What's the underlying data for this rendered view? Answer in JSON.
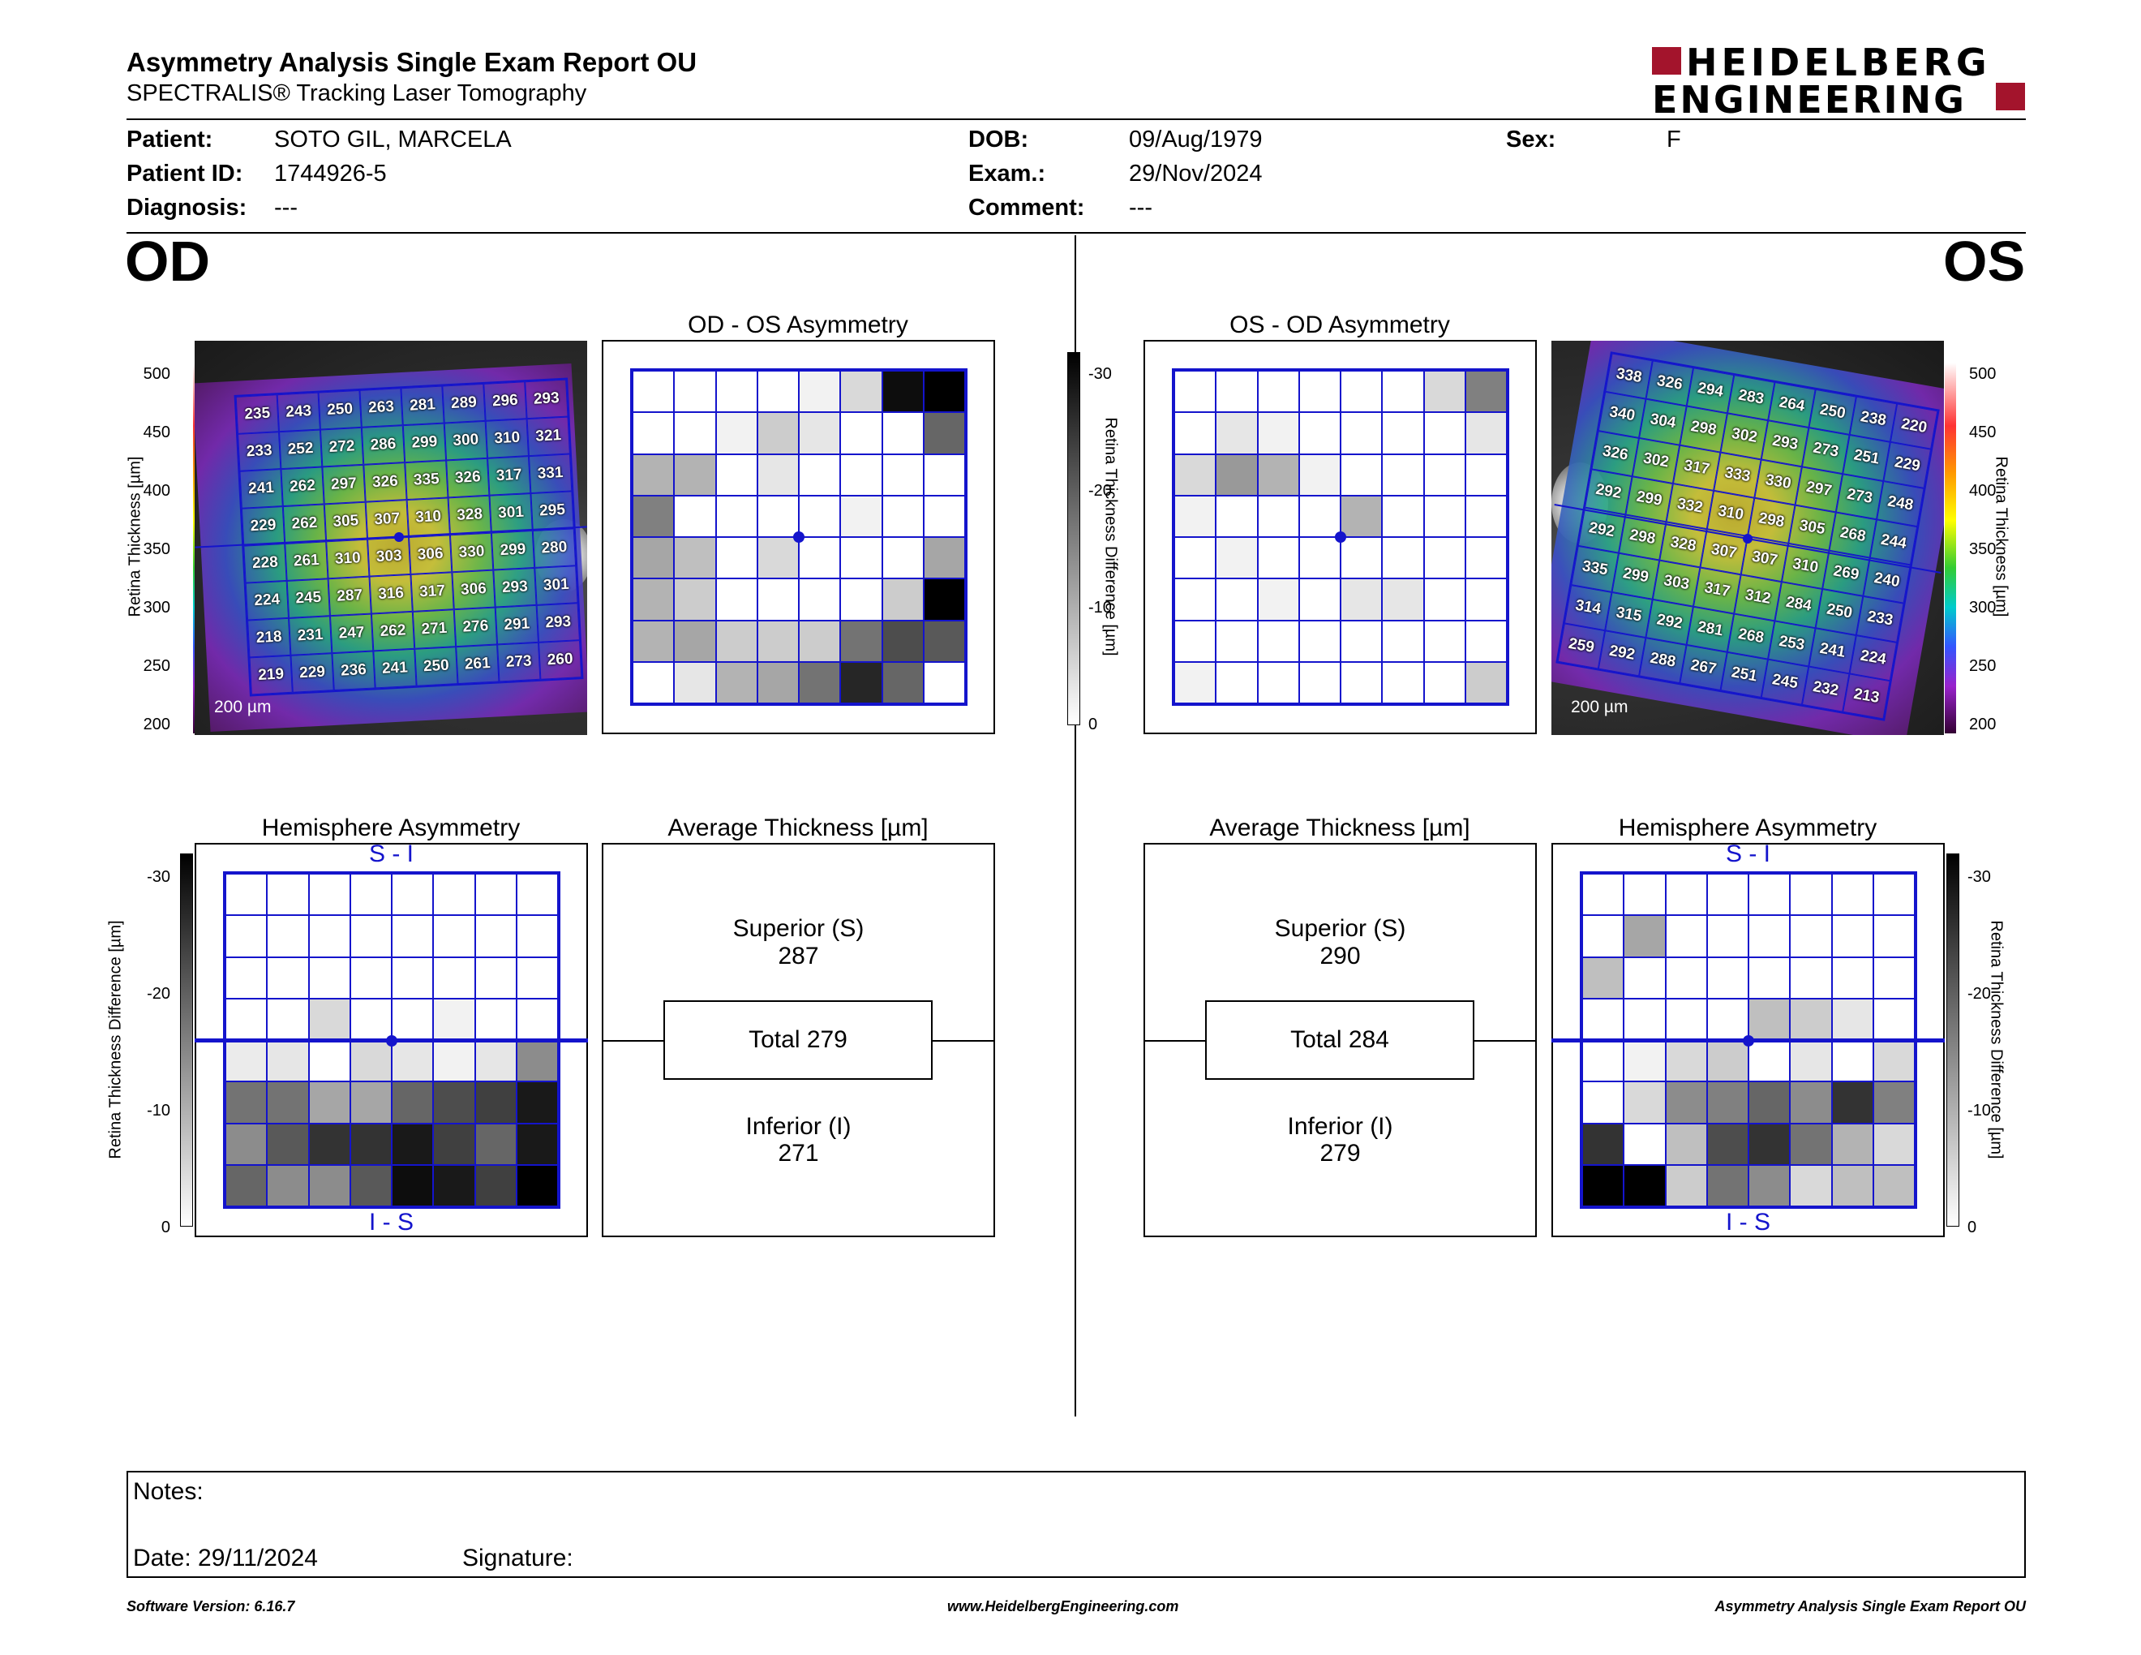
{
  "header": {
    "title": "Asymmetry Analysis Single Exam Report OU",
    "subtitle": "SPECTRALIS® Tracking Laser Tomography",
    "brand_line1": "HEIDELBERG",
    "brand_line2": "ENGINEERING",
    "brand_color": "#a3142c"
  },
  "patient": {
    "patient_label": "Patient:",
    "patient_value": "SOTO GIL, MARCELA",
    "id_label": "Patient ID:",
    "id_value": "1744926-5",
    "diagnosis_label": "Diagnosis:",
    "diagnosis_value": "---",
    "dob_label": "DOB:",
    "dob_value": "09/Aug/1979",
    "exam_label": "Exam.:",
    "exam_value": "29/Nov/2024",
    "comment_label": "Comment:",
    "comment_value": "---",
    "sex_label": "Sex:",
    "sex_value": "F"
  },
  "eyes": {
    "left": "OD",
    "right": "OS"
  },
  "od": {
    "thickness_map": [
      [
        235,
        243,
        250,
        263,
        281,
        289,
        296,
        293
      ],
      [
        233,
        252,
        272,
        286,
        299,
        300,
        310,
        321
      ],
      [
        241,
        262,
        297,
        326,
        335,
        326,
        317,
        331
      ],
      [
        229,
        262,
        305,
        307,
        310,
        328,
        301,
        295
      ],
      [
        228,
        261,
        310,
        303,
        306,
        330,
        299,
        280
      ],
      [
        224,
        245,
        287,
        316,
        317,
        306,
        293,
        301
      ],
      [
        218,
        231,
        247,
        262,
        271,
        276,
        291,
        293
      ],
      [
        219,
        229,
        236,
        241,
        250,
        261,
        273,
        260
      ]
    ],
    "asymmetry_title": "OD - OS Asymmetry",
    "asymmetry_levels": [
      [
        0,
        0,
        0,
        0,
        0.05,
        0.15,
        0.95,
        1.0
      ],
      [
        0,
        0,
        0.05,
        0.2,
        0.1,
        0,
        0,
        0.6
      ],
      [
        0.3,
        0.3,
        0,
        0.1,
        0,
        0,
        0,
        0
      ],
      [
        0.5,
        0,
        0,
        0,
        0,
        0.05,
        0,
        0
      ],
      [
        0.35,
        0.25,
        0,
        0.15,
        0,
        0,
        0,
        0.35
      ],
      [
        0.3,
        0.2,
        0,
        0,
        0,
        0,
        0.2,
        1.0
      ],
      [
        0.3,
        0.35,
        0.2,
        0.2,
        0.2,
        0.55,
        0.7,
        0.65
      ],
      [
        0,
        0.1,
        0.3,
        0.35,
        0.55,
        0.85,
        0.6,
        0
      ]
    ],
    "hemi_title": "Hemisphere Asymmetry",
    "hemi_top": "S - I",
    "hemi_bottom": "I - S",
    "hemi_levels": [
      [
        0,
        0,
        0,
        0,
        0,
        0,
        0,
        0
      ],
      [
        0,
        0,
        0,
        0,
        0,
        0,
        0,
        0
      ],
      [
        0,
        0,
        0,
        0,
        0,
        0,
        0,
        0
      ],
      [
        0,
        0,
        0.15,
        0,
        0,
        0.05,
        0,
        0
      ],
      [
        0.08,
        0.1,
        0,
        0.15,
        0.1,
        0.05,
        0.1,
        0.45
      ],
      [
        0.55,
        0.55,
        0.35,
        0.35,
        0.6,
        0.7,
        0.75,
        0.9
      ],
      [
        0.45,
        0.65,
        0.8,
        0.8,
        0.9,
        0.75,
        0.6,
        0.9
      ],
      [
        0.6,
        0.45,
        0.45,
        0.65,
        0.95,
        0.9,
        0.75,
        1.0
      ]
    ],
    "avg_title": "Average Thickness [µm]",
    "superior_label": "Superior (S)",
    "superior_value": "287",
    "total_label": "Total 279",
    "inferior_label": "Inferior (I)",
    "inferior_value": "271",
    "scale_label": "200 µm"
  },
  "os": {
    "thickness_map": [
      [
        338,
        326,
        294,
        283,
        264,
        250,
        238,
        220
      ],
      [
        340,
        304,
        298,
        302,
        293,
        273,
        251,
        229
      ],
      [
        326,
        302,
        317,
        333,
        330,
        297,
        273,
        248
      ],
      [
        292,
        299,
        332,
        310,
        298,
        305,
        268,
        244
      ],
      [
        292,
        298,
        328,
        307,
        307,
        310,
        269,
        240
      ],
      [
        335,
        299,
        303,
        317,
        312,
        284,
        250,
        233
      ],
      [
        314,
        315,
        292,
        281,
        268,
        253,
        241,
        224
      ],
      [
        259,
        292,
        288,
        267,
        251,
        245,
        232,
        213
      ]
    ],
    "asymmetry_title": "OS - OD Asymmetry",
    "asymmetry_levels": [
      [
        0,
        0,
        0,
        0,
        0,
        0,
        0.15,
        0.5
      ],
      [
        0,
        0.1,
        0.05,
        0,
        0,
        0,
        0,
        0.1
      ],
      [
        0.15,
        0.4,
        0.3,
        0.05,
        0,
        0,
        0,
        0
      ],
      [
        0.05,
        0,
        0,
        0,
        0.3,
        0,
        0,
        0
      ],
      [
        0,
        0.05,
        0,
        0,
        0,
        0,
        0,
        0
      ],
      [
        0,
        0,
        0.05,
        0,
        0.1,
        0.1,
        0,
        0
      ],
      [
        0,
        0,
        0,
        0,
        0,
        0,
        0,
        0
      ],
      [
        0.05,
        0,
        0,
        0,
        0,
        0,
        0,
        0.2
      ]
    ],
    "hemi_title": "Hemisphere Asymmetry",
    "hemi_top": "S - I",
    "hemi_bottom": "I - S",
    "hemi_levels": [
      [
        0,
        0,
        0,
        0,
        0,
        0,
        0,
        0
      ],
      [
        0,
        0.35,
        0,
        0,
        0,
        0,
        0,
        0
      ],
      [
        0.25,
        0,
        0,
        0,
        0,
        0,
        0,
        0
      ],
      [
        0,
        0,
        0,
        0,
        0.25,
        0.2,
        0.1,
        0
      ],
      [
        0,
        0.05,
        0.15,
        0.2,
        0,
        0.1,
        0,
        0.15
      ],
      [
        0,
        0.15,
        0.45,
        0.5,
        0.6,
        0.45,
        0.8,
        0.5
      ],
      [
        0.8,
        0,
        0.25,
        0.7,
        0.8,
        0.55,
        0.3,
        0.15
      ],
      [
        1.0,
        1.0,
        0.2,
        0.55,
        0.45,
        0.15,
        0.25,
        0.25
      ]
    ],
    "avg_title": "Average Thickness [µm]",
    "superior_label": "Superior (S)",
    "superior_value": "290",
    "total_label": "Total 284",
    "inferior_label": "Inferior (I)",
    "inferior_value": "279",
    "scale_label": "200 µm"
  },
  "scales": {
    "thickness_label": "Retina Thickness [µm]",
    "thickness_ticks": [
      "500",
      "450",
      "400",
      "350",
      "300",
      "250",
      "200"
    ],
    "difference_label": "Retina Thickness Difference [µm]",
    "difference_ticks": [
      "-30",
      "-20",
      "-10",
      "0"
    ]
  },
  "notes": {
    "notes_label": "Notes:",
    "date_label": "Date: 29/11/2024",
    "signature_label": "Signature:"
  },
  "footer": {
    "software": "Software Version: 6.16.7",
    "website": "www.HeidelbergEngineering.com",
    "report": "Asymmetry Analysis Single Exam Report OU"
  }
}
